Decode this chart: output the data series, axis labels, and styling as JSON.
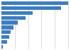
{
  "values": [
    5500,
    4900,
    2600,
    2000,
    1350,
    1000,
    780,
    620,
    480,
    130
  ],
  "bar_color": "#3e7ec0",
  "background_color": "#ffffff",
  "grid_color": "#cccccc",
  "figsize": [
    1.0,
    0.71
  ],
  "dpi": 100
}
